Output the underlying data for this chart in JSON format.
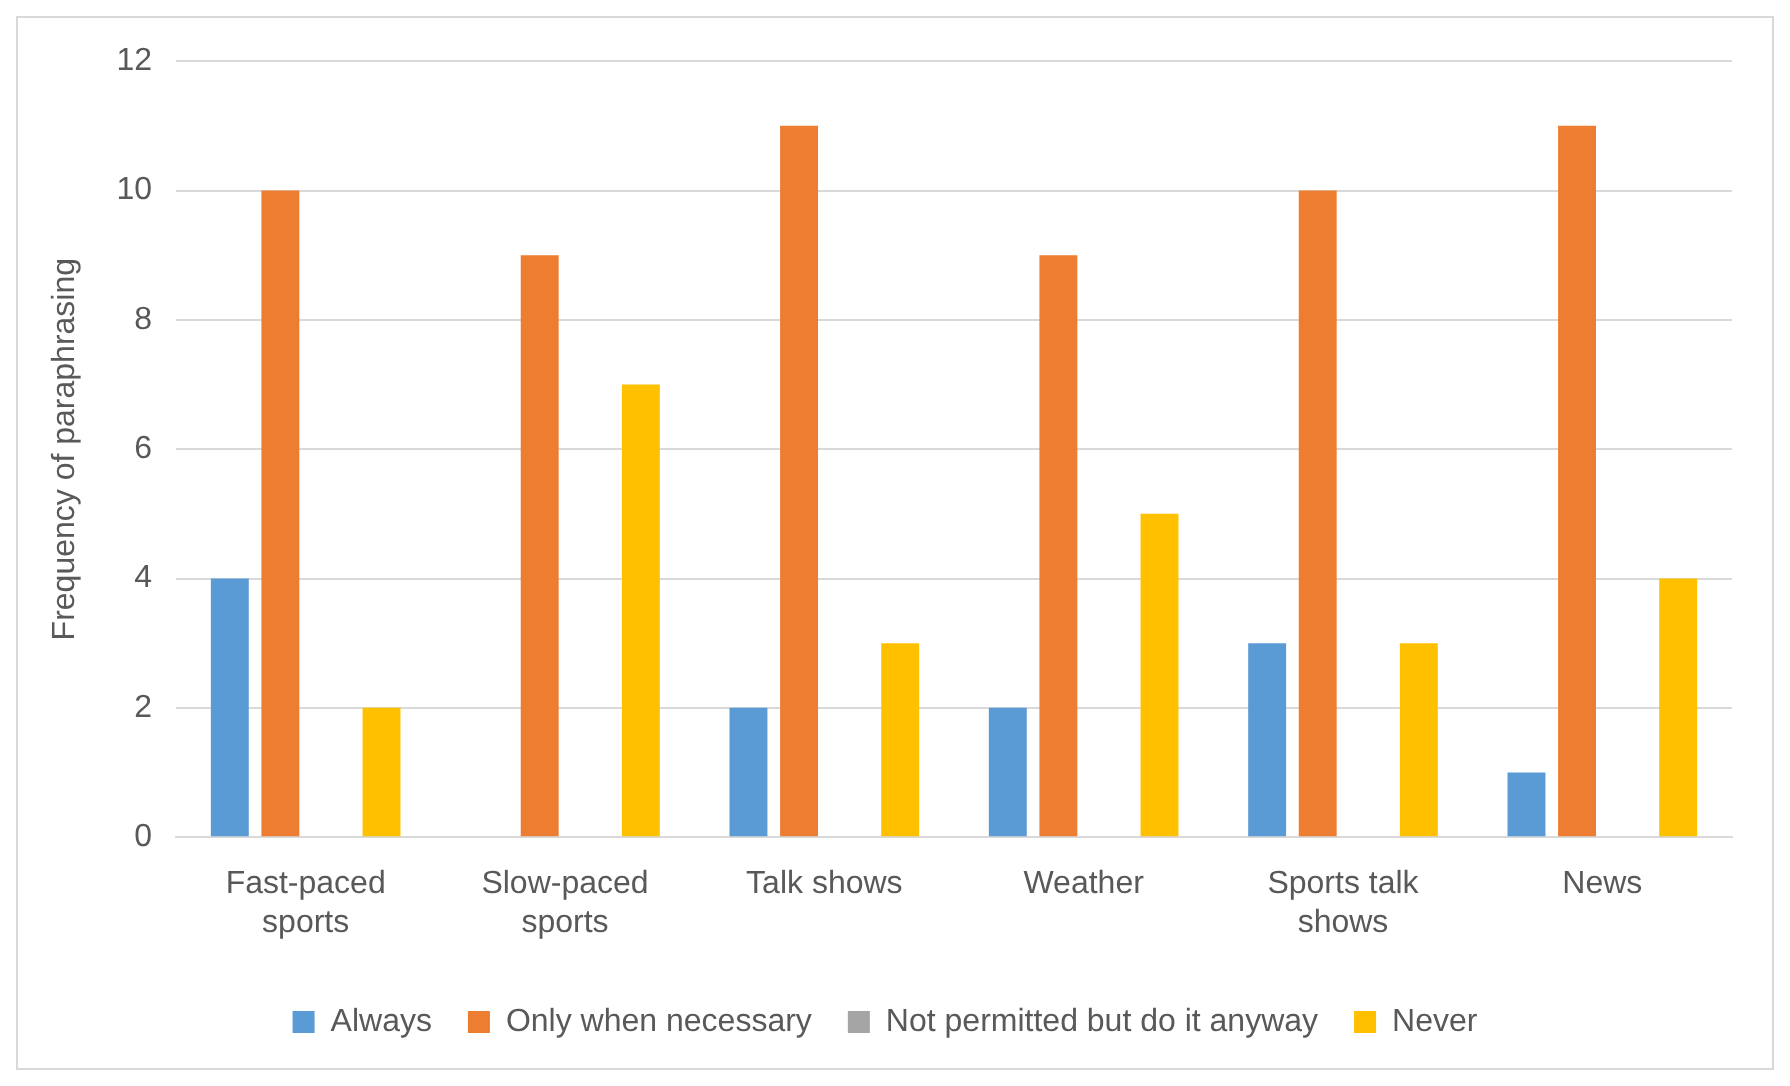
{
  "chart_data": {
    "type": "bar",
    "ylabel": "Frequency of paraphrasing",
    "categories": [
      "Fast-paced sports",
      "Slow-paced sports",
      "Talk shows",
      "Weather",
      "Sports talk shows",
      "News"
    ],
    "series": [
      {
        "name": "Always",
        "color": "#5b9bd5",
        "values": [
          4,
          0,
          2,
          2,
          3,
          1
        ]
      },
      {
        "name": "Only when necessary",
        "color": "#ed7d31",
        "values": [
          10,
          9,
          11,
          9,
          10,
          11
        ]
      },
      {
        "name": "Not permitted but do it anyway",
        "color": "#a5a5a5",
        "values": [
          0,
          0,
          0,
          0,
          0,
          0
        ]
      },
      {
        "name": "Never",
        "color": "#ffc000",
        "values": [
          2,
          7,
          3,
          5,
          3,
          4
        ]
      }
    ],
    "ylim": [
      0,
      12
    ],
    "yticks": [
      0,
      2,
      4,
      6,
      8,
      10,
      12
    ],
    "grid": "y",
    "legend": "bottom"
  }
}
